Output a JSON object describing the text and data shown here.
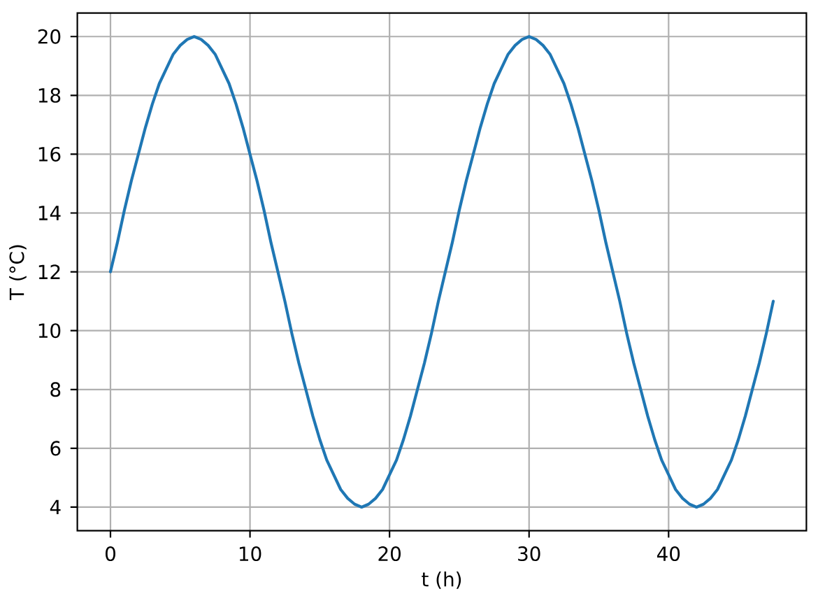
{
  "chart_data": {
    "type": "line",
    "xlabel": "t (h)",
    "ylabel": "T (°C)",
    "x": [
      0,
      0.5,
      1,
      1.5,
      2,
      2.5,
      3,
      3.5,
      4,
      4.5,
      5,
      5.5,
      6,
      6.5,
      7,
      7.5,
      8,
      8.5,
      9,
      9.5,
      10,
      10.5,
      11,
      11.5,
      12,
      12.5,
      13,
      13.5,
      14,
      14.5,
      15,
      15.5,
      16,
      16.5,
      17,
      17.5,
      18,
      18.5,
      19,
      19.5,
      20,
      20.5,
      21,
      21.5,
      22,
      22.5,
      23,
      23.5,
      24,
      24.5,
      25,
      25.5,
      26,
      26.5,
      27,
      27.5,
      28,
      28.5,
      29,
      29.5,
      30,
      30.5,
      31,
      31.5,
      32,
      32.5,
      33,
      33.5,
      34,
      34.5,
      35,
      35.5,
      36,
      36.5,
      37,
      37.5,
      38,
      38.5,
      39,
      39.5,
      40,
      40.5,
      41,
      41.5,
      42,
      42.5,
      43,
      43.5,
      44,
      44.5,
      45,
      45.5,
      46,
      46.5,
      47,
      47.5
    ],
    "series": [
      {
        "color": "#1f77b4",
        "values": [
          12,
          13.0,
          14.1,
          15.1,
          16,
          16.9,
          17.7,
          18.4,
          18.9,
          19.4,
          19.7,
          19.9,
          20,
          19.9,
          19.7,
          19.4,
          18.9,
          18.4,
          17.7,
          16.9,
          16,
          15.1,
          14.1,
          13.0,
          12,
          11.0,
          9.9,
          8.9,
          8,
          7.1,
          6.3,
          5.6,
          5.1,
          4.6,
          4.3,
          4.1,
          4,
          4.1,
          4.3,
          4.6,
          5.1,
          5.6,
          6.3,
          7.1,
          8,
          8.9,
          9.9,
          11.0,
          12,
          13.0,
          14.1,
          15.1,
          16,
          16.9,
          17.7,
          18.4,
          18.9,
          19.4,
          19.7,
          19.9,
          20,
          19.9,
          19.7,
          19.4,
          18.9,
          18.4,
          17.7,
          16.9,
          16,
          15.1,
          14.1,
          13.0,
          12,
          11.0,
          9.9,
          8.9,
          8,
          7.1,
          6.3,
          5.6,
          5.1,
          4.6,
          4.3,
          4.1,
          4,
          4.1,
          4.3,
          4.6,
          5.1,
          5.6,
          6.3,
          7.1,
          8,
          8.9,
          9.9,
          11.0
        ]
      }
    ],
    "xlim": [
      -2.375,
      49.875
    ],
    "ylim": [
      3.2,
      20.8
    ],
    "xticks": [
      0,
      10,
      20,
      30,
      40
    ],
    "yticks": [
      4,
      6,
      8,
      10,
      12,
      14,
      16,
      18,
      20
    ],
    "grid": true
  }
}
